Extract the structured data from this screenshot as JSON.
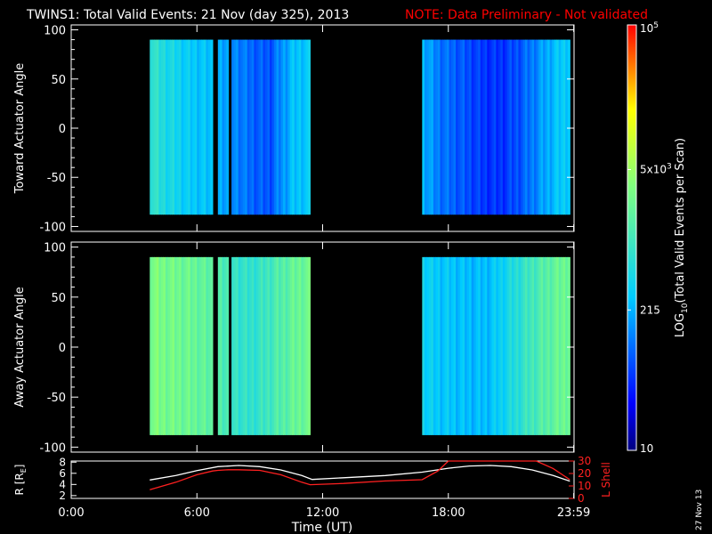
{
  "header": {
    "title": "TWINS1: Total Valid Events: 21 Nov (day 325), 2013",
    "note": "NOTE: Data Preliminary - Not validated"
  },
  "colors": {
    "background": "#000000",
    "foreground": "#ffffff",
    "note": "#ff0000",
    "r_trace": "#ffffff",
    "lshell_trace": "#ff2020"
  },
  "side_date": "27 Nov 13",
  "chart_data": [
    {
      "type": "heatmap",
      "name": "toward-panel",
      "ylabel": "Toward Actuator Angle",
      "xlim": [
        0,
        24
      ],
      "ylim": [
        -105,
        105
      ],
      "yticks": [
        100,
        50,
        0,
        -50,
        -100
      ],
      "ytick_labels": [
        "100",
        "50",
        "0",
        "-50",
        "-100"
      ],
      "data_angle_range": [
        -88,
        90
      ],
      "intervals": [
        {
          "start": 3.75,
          "end": 6.75
        },
        {
          "start": 7.0,
          "end": 7.5
        },
        {
          "start": 7.65,
          "end": 11.4
        },
        {
          "start": 16.75,
          "end": 23.8
        }
      ],
      "profile": [
        [
          3.75,
          0.48
        ],
        [
          4.0,
          0.46
        ],
        [
          4.5,
          0.42
        ],
        [
          5.0,
          0.4
        ],
        [
          5.5,
          0.37
        ],
        [
          6.0,
          0.36
        ],
        [
          6.5,
          0.35
        ],
        [
          7.0,
          0.31
        ],
        [
          7.5,
          0.3
        ],
        [
          8.0,
          0.27
        ],
        [
          8.5,
          0.24
        ],
        [
          9.0,
          0.22
        ],
        [
          9.5,
          0.21
        ],
        [
          10.0,
          0.28
        ],
        [
          10.5,
          0.34
        ],
        [
          11.0,
          0.36
        ],
        [
          11.4,
          0.36
        ],
        [
          16.75,
          0.34
        ],
        [
          17.0,
          0.31
        ],
        [
          17.5,
          0.26
        ],
        [
          18.0,
          0.24
        ],
        [
          18.5,
          0.22
        ],
        [
          19.0,
          0.2
        ],
        [
          19.5,
          0.18
        ],
        [
          20.0,
          0.17
        ],
        [
          20.5,
          0.17
        ],
        [
          21.0,
          0.19
        ],
        [
          21.5,
          0.22
        ],
        [
          22.0,
          0.26
        ],
        [
          22.5,
          0.3
        ],
        [
          23.0,
          0.34
        ],
        [
          23.5,
          0.37
        ],
        [
          23.8,
          0.38
        ]
      ]
    },
    {
      "type": "heatmap",
      "name": "away-panel",
      "ylabel": "Away Actuator Angle",
      "xlim": [
        0,
        24
      ],
      "ylim": [
        -105,
        105
      ],
      "yticks": [
        100,
        50,
        0,
        -50,
        -100
      ],
      "ytick_labels": [
        "100",
        "50",
        "0",
        "-50",
        "-100"
      ],
      "data_angle_range": [
        -88,
        90
      ],
      "intervals": [
        {
          "start": 3.75,
          "end": 6.75
        },
        {
          "start": 7.0,
          "end": 7.5
        },
        {
          "start": 7.65,
          "end": 11.4
        },
        {
          "start": 16.75,
          "end": 23.8
        }
      ],
      "profile": [
        [
          3.75,
          0.62
        ],
        [
          4.0,
          0.61
        ],
        [
          4.5,
          0.6
        ],
        [
          5.0,
          0.59
        ],
        [
          5.5,
          0.58
        ],
        [
          6.0,
          0.57
        ],
        [
          6.5,
          0.55
        ],
        [
          7.0,
          0.52
        ],
        [
          7.5,
          0.5
        ],
        [
          8.0,
          0.47
        ],
        [
          8.5,
          0.46
        ],
        [
          9.0,
          0.47
        ],
        [
          9.5,
          0.5
        ],
        [
          10.0,
          0.53
        ],
        [
          10.5,
          0.56
        ],
        [
          11.0,
          0.58
        ],
        [
          11.4,
          0.58
        ],
        [
          16.75,
          0.4
        ],
        [
          17.0,
          0.38
        ],
        [
          17.5,
          0.36
        ],
        [
          18.0,
          0.36
        ],
        [
          18.5,
          0.35
        ],
        [
          19.0,
          0.34
        ],
        [
          19.5,
          0.34
        ],
        [
          20.0,
          0.35
        ],
        [
          20.5,
          0.38
        ],
        [
          21.0,
          0.42
        ],
        [
          21.5,
          0.46
        ],
        [
          22.0,
          0.5
        ],
        [
          22.5,
          0.53
        ],
        [
          23.0,
          0.56
        ],
        [
          23.5,
          0.58
        ],
        [
          23.8,
          0.6
        ]
      ]
    },
    {
      "type": "line",
      "name": "orbit-panel",
      "xlabel": "Time (UT)",
      "xlim": [
        0,
        24
      ],
      "xticks": [
        0,
        6,
        12,
        18,
        23.983
      ],
      "xtick_labels": [
        "0:00",
        "6:00",
        "12:00",
        "18:00",
        "23:59"
      ],
      "ylabel_left": "R [RE]",
      "ylim_left": [
        1.5,
        8.2
      ],
      "yticks_left": [
        2,
        4,
        6,
        8
      ],
      "ytick_labels_left": [
        "2",
        "4",
        "6",
        "8"
      ],
      "ylabel_right": "L Shell",
      "ylim_right": [
        0,
        30
      ],
      "yticks_right": [
        0,
        10,
        20,
        30
      ],
      "ytick_labels_right": [
        "0",
        "10",
        "20",
        "30"
      ],
      "series": [
        {
          "axis": "left",
          "color": "#ffffff",
          "x": [
            3.75,
            5.0,
            6.0,
            7.0,
            8.0,
            9.0,
            10.0,
            11.0,
            11.5,
            13.0,
            15.0,
            16.75,
            18.0,
            19.0,
            20.0,
            21.0,
            22.0,
            23.0,
            23.8
          ],
          "y": [
            4.8,
            5.6,
            6.5,
            7.2,
            7.4,
            7.2,
            6.6,
            5.6,
            4.9,
            5.2,
            5.6,
            6.2,
            6.9,
            7.3,
            7.4,
            7.2,
            6.6,
            5.6,
            4.6
          ]
        },
        {
          "axis": "right",
          "color": "#ff2020",
          "x": [
            3.75,
            5.0,
            6.0,
            6.75,
            7.0,
            7.5,
            8.0,
            9.0,
            10.0,
            11.0,
            11.4,
            13.0,
            15.0,
            16.75,
            17.5,
            18.0,
            22.2,
            23.0,
            23.8
          ],
          "y": [
            7,
            13,
            19,
            22,
            22.5,
            23,
            23,
            22.5,
            19,
            13,
            11,
            12,
            14,
            15,
            22,
            30,
            30,
            24,
            15
          ]
        }
      ]
    }
  ],
  "colorbar": {
    "title": "LOG10(Total Valid Events per Scan)",
    "title_main": "LOG",
    "title_sub": "10",
    "title_rest": "(Total Valid Events per Scan)",
    "tick_labels": [
      {
        "base": "10",
        "sup": "5",
        "frac": 1.0
      },
      {
        "base": "5x10",
        "sup": "3",
        "frac": 0.66
      },
      {
        "base": "215",
        "sup": "",
        "frac": 0.33
      },
      {
        "base": "10",
        "sup": "",
        "frac": 0.0
      }
    ]
  }
}
